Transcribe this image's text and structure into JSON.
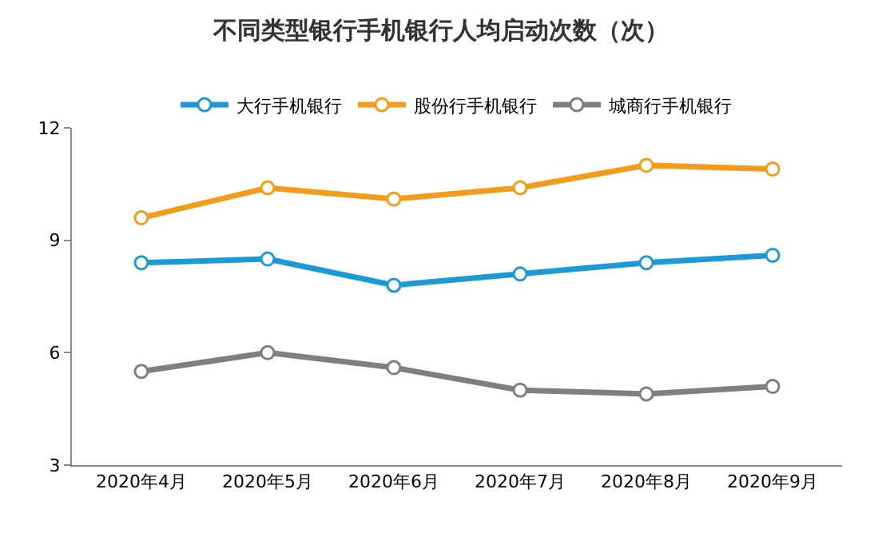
{
  "chart_data": {
    "type": "line",
    "title": "不同类型银行手机银行人均启动次数（次）",
    "categories": [
      "2020年4月",
      "2020年5月",
      "2020年6月",
      "2020年7月",
      "2020年8月",
      "2020年9月"
    ],
    "series": [
      {
        "name": "大行手机银行",
        "color": "#1b9ad6",
        "values": [
          8.4,
          8.5,
          7.8,
          8.1,
          8.4,
          8.6
        ]
      },
      {
        "name": "股份行手机银行",
        "color": "#f29c1b",
        "values": [
          9.6,
          10.4,
          10.1,
          10.4,
          11.0,
          10.9
        ]
      },
      {
        "name": "城商行手机银行",
        "color": "#7f7f7f",
        "values": [
          5.5,
          6.0,
          5.6,
          5.0,
          4.9,
          5.1
        ]
      }
    ],
    "ylim": [
      3,
      12
    ],
    "yticks": [
      3,
      6,
      9,
      12
    ],
    "legend": "top",
    "marker": "circle",
    "line_style": "solid"
  }
}
